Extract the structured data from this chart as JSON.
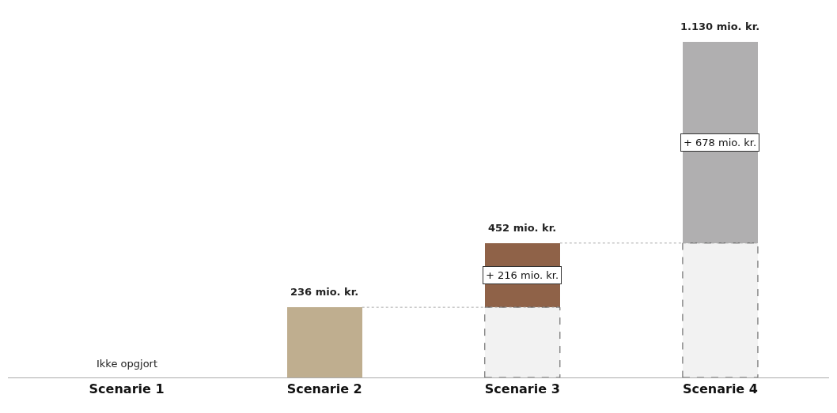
{
  "chart_data": {
    "type": "bar",
    "stacked": true,
    "categories": [
      "Scenarie 1",
      "Scenarie 2",
      "Scenarie 3",
      "Scenarie 4"
    ],
    "series": [
      {
        "colors": [
          "#bfae8f",
          "#bfae8f",
          "#bfae8f",
          "#bfae8f"
        ],
        "values": [
          null,
          236,
          null,
          null
        ]
      },
      {
        "colors": [
          "#f2f2f2",
          "#f2f2f2",
          "#f2f2f2",
          "#f2f2f2"
        ],
        "line_style": "dashed",
        "values": [
          null,
          null,
          236,
          452
        ]
      },
      {
        "colors": [
          "#8f6248",
          "#8f6248",
          "#8f6248",
          "#b0afb0"
        ],
        "values": [
          null,
          null,
          216,
          678
        ],
        "value_labels": [
          null,
          null,
          "+ 216 mio. kr.",
          "+ 678 mio. kr."
        ]
      }
    ],
    "totals": [
      null,
      "236 mio. kr.",
      "452 mio. kr.",
      "1.130 mio. kr."
    ],
    "annotations": [
      "Ikke opgjort"
    ],
    "tick_labels": "x"
  }
}
